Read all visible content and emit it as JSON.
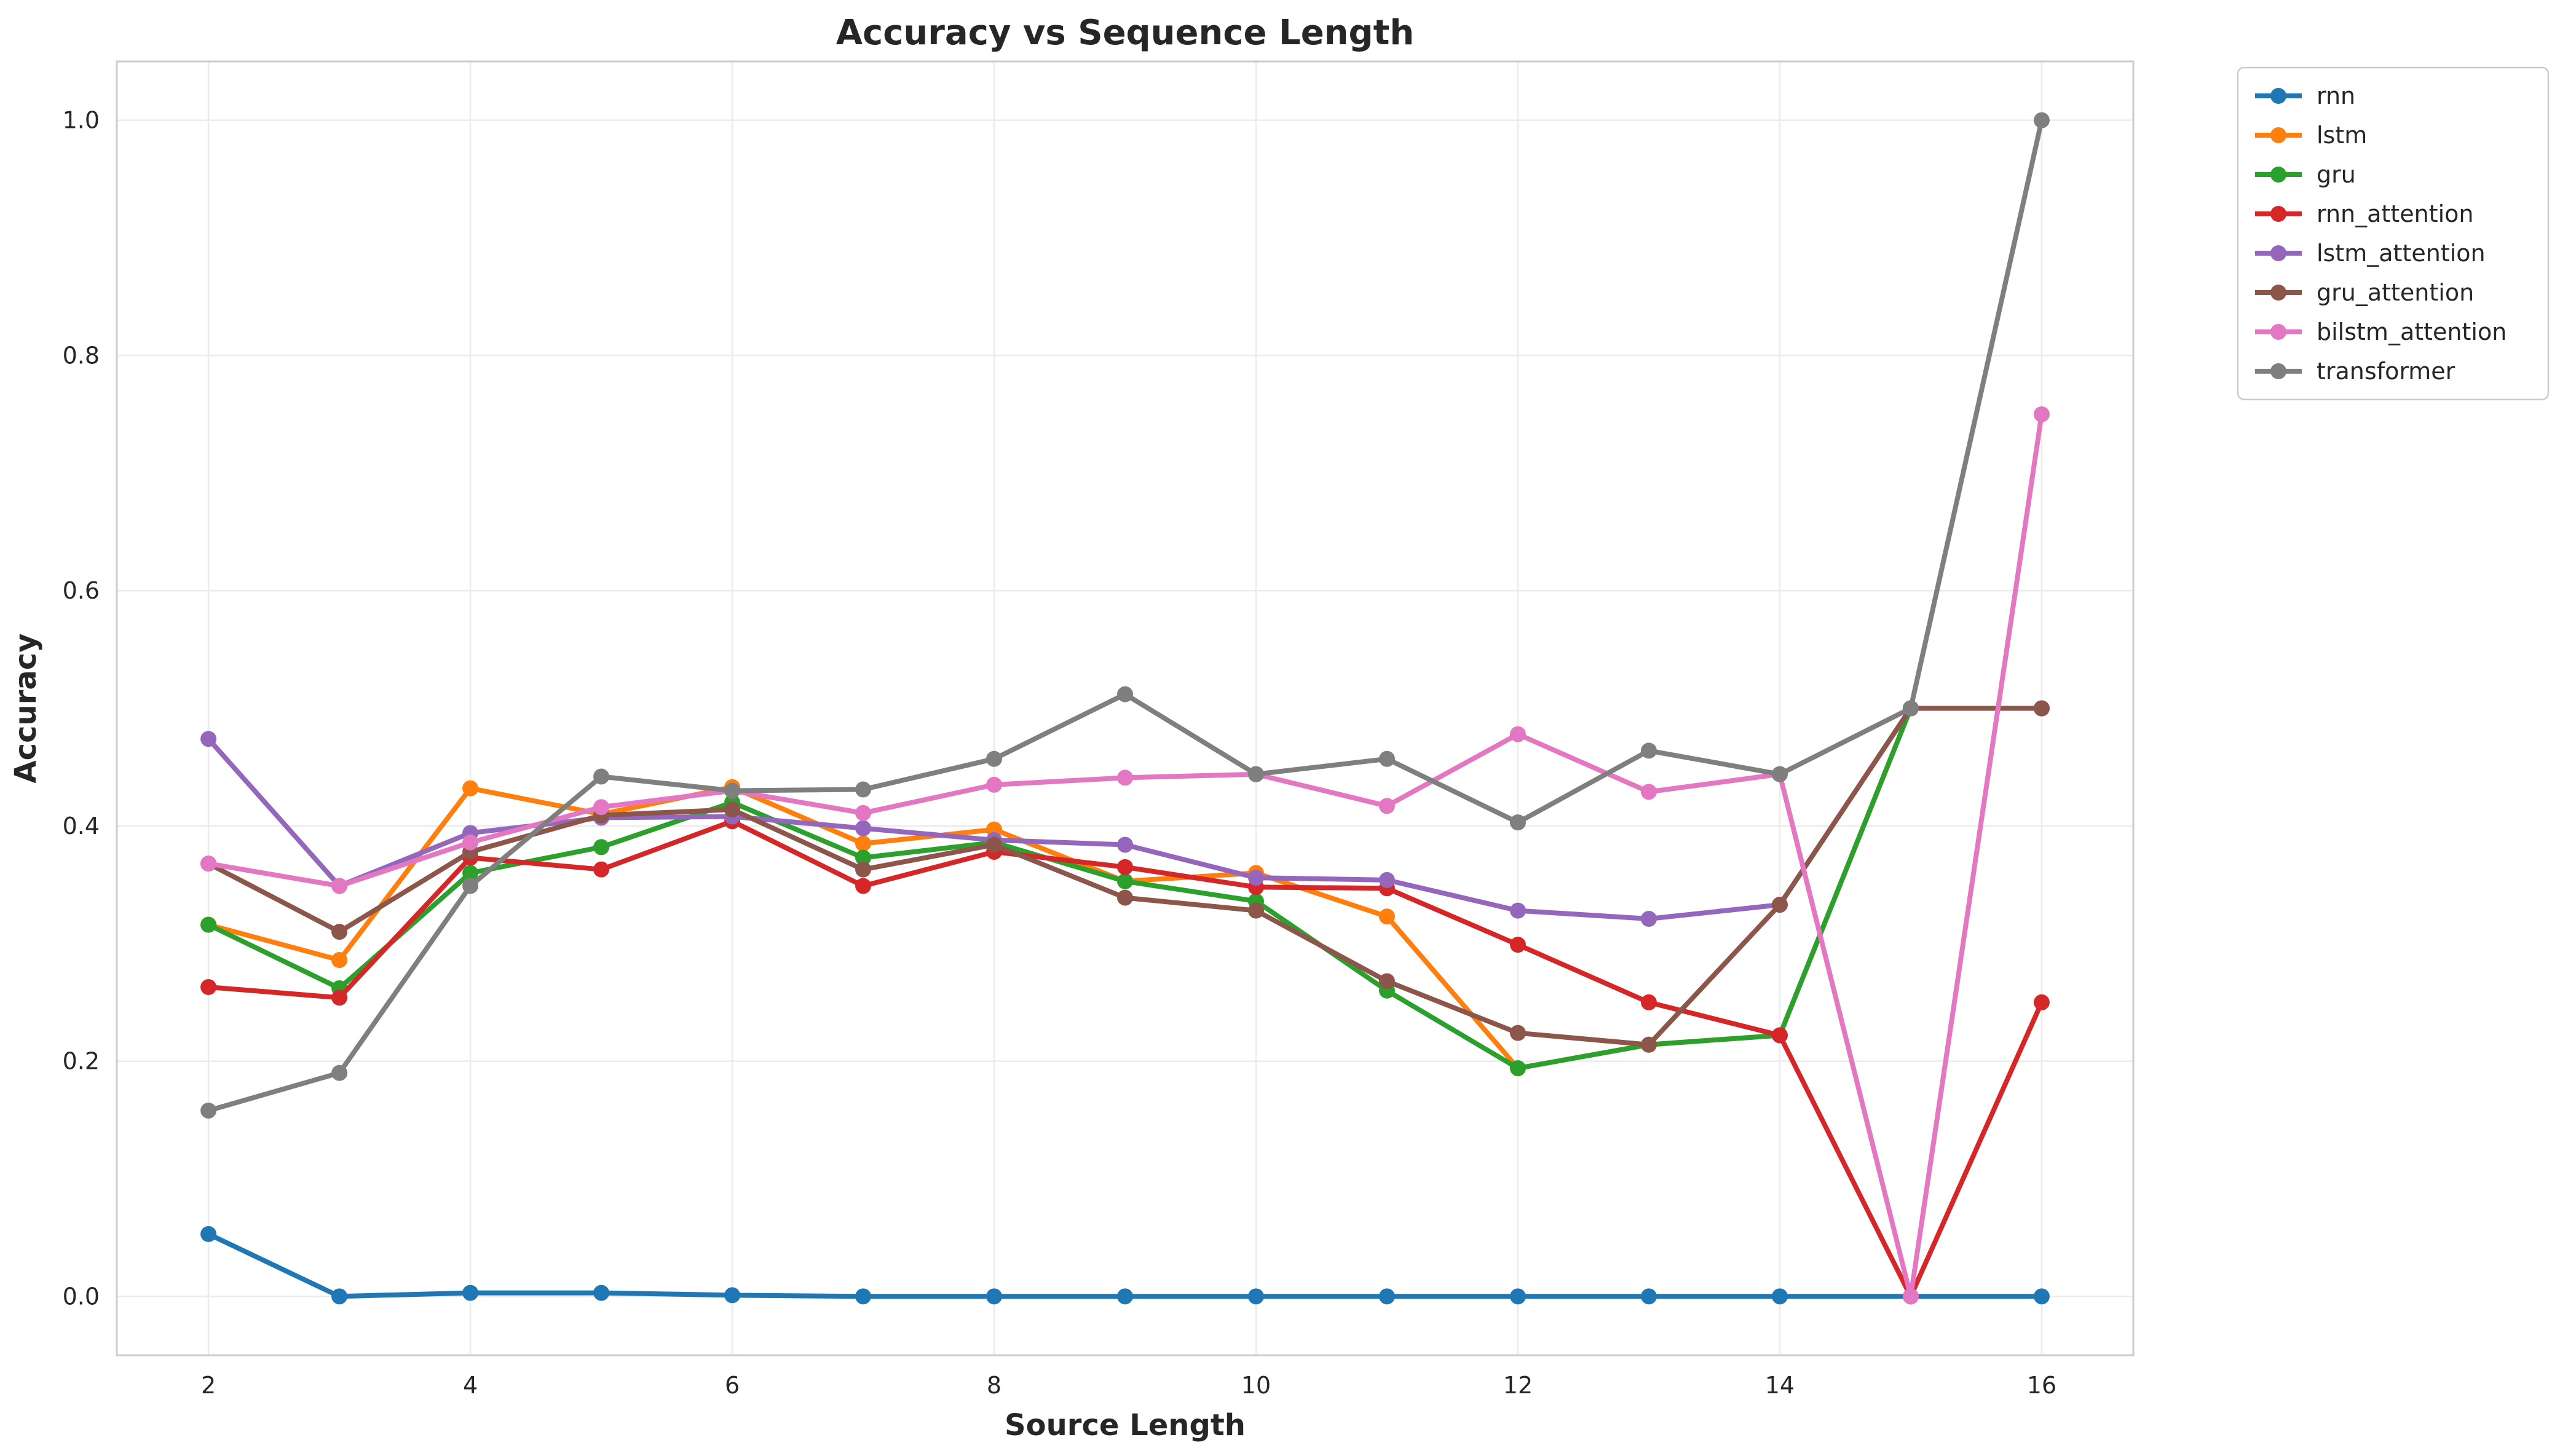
{
  "chart_data": {
    "type": "line",
    "title": "Accuracy vs Sequence Length",
    "xlabel": "Source Length",
    "ylabel": "Accuracy",
    "x": [
      2,
      3,
      4,
      5,
      6,
      7,
      8,
      9,
      10,
      11,
      12,
      13,
      14,
      15,
      16
    ],
    "xlim": [
      1.3,
      16.7
    ],
    "ylim": [
      -0.05,
      1.05
    ],
    "xticks": [
      2,
      4,
      6,
      8,
      10,
      12,
      14,
      16
    ],
    "yticks": [
      0.0,
      0.2,
      0.4,
      0.6,
      0.8,
      1.0
    ],
    "grid": true,
    "legend_position": "outside-right",
    "markers": "circle",
    "series": [
      {
        "name": "rnn",
        "color": "#1f77b4",
        "values": [
          0.053,
          0.0,
          0.003,
          0.003,
          0.001,
          0.0,
          0.0,
          0.0,
          0.0,
          0.0,
          0.0,
          0.0,
          0.0,
          0.0,
          0.0
        ]
      },
      {
        "name": "lstm",
        "color": "#ff7f0e",
        "values": [
          0.316,
          0.286,
          0.432,
          0.41,
          0.433,
          0.385,
          0.397,
          0.353,
          0.36,
          0.323,
          0.194,
          0.214,
          0.222,
          0.5,
          0.5
        ]
      },
      {
        "name": "gru",
        "color": "#2ca02c",
        "values": [
          0.316,
          0.262,
          0.36,
          0.382,
          0.42,
          0.373,
          0.386,
          0.353,
          0.336,
          0.26,
          0.194,
          0.214,
          0.222,
          0.5,
          0.5
        ]
      },
      {
        "name": "rnn_attention",
        "color": "#d62728",
        "values": [
          0.263,
          0.254,
          0.373,
          0.363,
          0.404,
          0.349,
          0.378,
          0.365,
          0.348,
          0.347,
          0.299,
          0.25,
          0.222,
          0.0,
          0.25
        ]
      },
      {
        "name": "lstm_attention",
        "color": "#9467bd",
        "values": [
          0.474,
          0.349,
          0.394,
          0.407,
          0.408,
          0.398,
          0.388,
          0.384,
          0.356,
          0.354,
          0.328,
          0.321,
          0.333,
          0.5,
          0.5
        ]
      },
      {
        "name": "gru_attention",
        "color": "#8c564b",
        "values": [
          0.368,
          0.31,
          0.378,
          0.409,
          0.414,
          0.363,
          0.384,
          0.339,
          0.328,
          0.268,
          0.224,
          0.214,
          0.333,
          0.5,
          0.5
        ]
      },
      {
        "name": "bilstm_attention",
        "color": "#e377c2",
        "values": [
          0.368,
          0.349,
          0.386,
          0.416,
          0.43,
          0.411,
          0.435,
          0.441,
          0.444,
          0.417,
          0.478,
          0.429,
          0.444,
          0.0,
          0.75
        ]
      },
      {
        "name": "transformer",
        "color": "#7f7f7f",
        "values": [
          0.158,
          0.19,
          0.349,
          0.442,
          0.43,
          0.431,
          0.457,
          0.512,
          0.444,
          0.457,
          0.403,
          0.464,
          0.444,
          0.5,
          1.0
        ]
      }
    ]
  }
}
